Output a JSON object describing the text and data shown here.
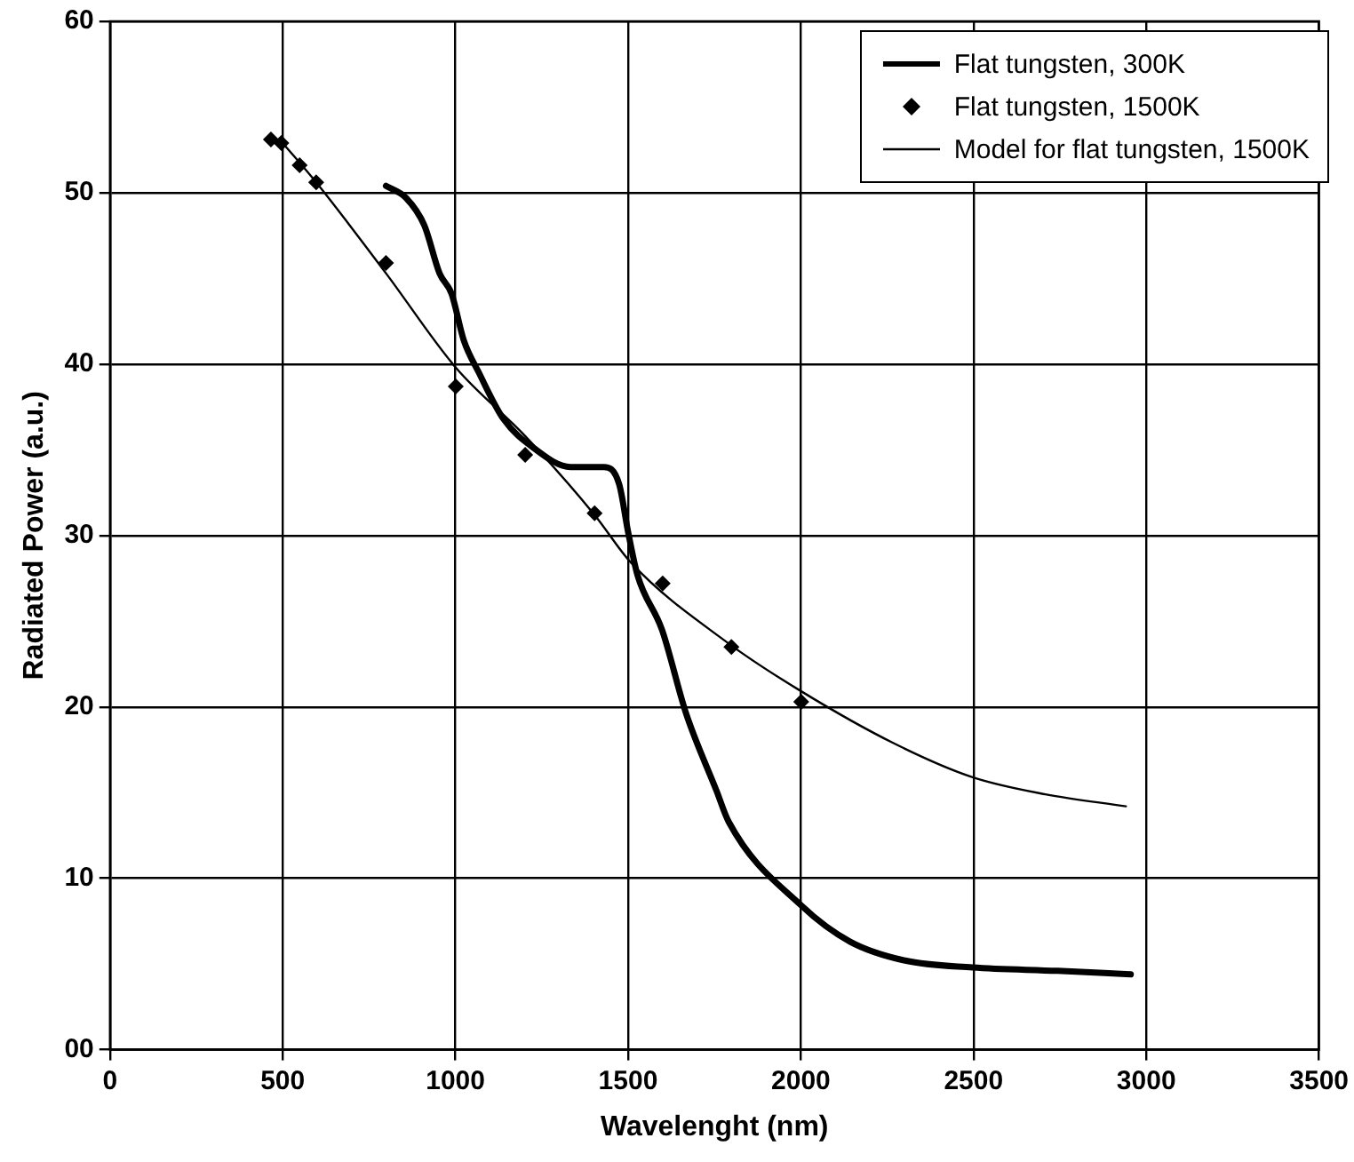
{
  "chart_data": {
    "type": "line",
    "xlabel": "Wavelenght (nm)",
    "ylabel": "Radiated Power (a.u.)",
    "xlim": [
      0,
      3500
    ],
    "xticks": [
      0,
      500,
      1000,
      1500,
      2000,
      2500,
      3000,
      3500
    ],
    "ylim": [
      0,
      60
    ],
    "yticks": [
      {
        "value": 0,
        "label": "00"
      },
      10,
      20,
      30,
      40,
      50,
      60
    ],
    "grid": true,
    "legend": "top right",
    "line_style": "solid",
    "series": [
      {
        "name": "Flat tungsten, 300K",
        "type": "line",
        "marker": "none",
        "color": "#000000",
        "x": [
          799,
          857,
          910,
          954,
          989,
          1024,
          1068,
          1139,
          1227,
          1333,
          1430,
          1474,
          1500,
          1527,
          1598,
          1668,
          1756,
          1791,
          2002,
          2143,
          2302,
          2497,
          2743,
          2955
        ],
        "values": [
          50.4,
          49.7,
          48.1,
          45.3,
          44.1,
          41.4,
          39.5,
          36.8,
          35.1,
          34.0,
          34.0,
          33.0,
          30.2,
          27.7,
          24.5,
          19.6,
          15.1,
          13.3,
          8.4,
          6.3,
          5.2,
          4.8,
          4.6,
          4.4
        ]
      },
      {
        "name": "Flat tungsten, 1500K",
        "type": "scatter",
        "marker": "diamond",
        "color": "#000000",
        "x": [
          466,
          496,
          549,
          597,
          799,
          1001,
          1202,
          1403,
          1600,
          1799,
          2001
        ],
        "values": [
          53.1,
          52.9,
          51.6,
          50.6,
          45.9,
          38.7,
          34.7,
          31.3,
          27.2,
          23.5,
          20.3
        ]
      },
      {
        "name": "Model for flat tungsten, 1500K",
        "type": "line",
        "marker": "none",
        "color": "#000000",
        "x": [
          500,
          597,
          799,
          1001,
          1202,
          1403,
          1509,
          1791,
          2002,
          2267,
          2497,
          2708,
          2941
        ],
        "values": [
          52.9,
          50.6,
          45.3,
          39.8,
          35.8,
          31.2,
          28.4,
          23.7,
          20.9,
          17.9,
          15.9,
          14.9,
          14.2
        ]
      }
    ]
  }
}
